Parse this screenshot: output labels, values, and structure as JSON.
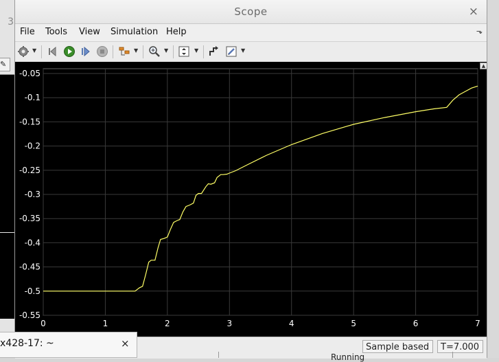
{
  "window": {
    "title": "Scope",
    "close_glyph": "×"
  },
  "menu": [
    "File",
    "Tools",
    "View",
    "Simulation",
    "Help"
  ],
  "menu_overflow_glyph": "⬎",
  "toolbar": {
    "icons": [
      "settings-icon",
      "step-back-icon",
      "run-icon",
      "step-forward-icon",
      "stop-icon",
      "highlight-icon",
      "zoom-icon",
      "autoscale-icon",
      "triggers-icon",
      "style-icon"
    ]
  },
  "status": {
    "mode": "Sample based",
    "time": "T=7.000"
  },
  "background": {
    "left_fragment": "3",
    "terminal_title": "x428-17: ~",
    "terminal_close": "×",
    "running_text": "Running"
  },
  "chart_data": {
    "type": "line",
    "title": "",
    "xlabel": "",
    "ylabel": "",
    "xlim": [
      0,
      7
    ],
    "ylim": [
      -0.55,
      -0.04
    ],
    "x_ticks": [
      "0",
      "1",
      "2",
      "3",
      "4",
      "5",
      "6",
      "7"
    ],
    "y_ticks": [
      "-0.05",
      "-0.1",
      "-0.15",
      "-0.2",
      "-0.25",
      "-0.3",
      "-0.35",
      "-0.4",
      "-0.45",
      "-0.5",
      "-0.55"
    ],
    "grid": true,
    "colors": {
      "background": "#000000",
      "line": "#ffff66",
      "grid": "#3a3a3a",
      "axis_text": "#ffffff"
    },
    "series": [
      {
        "x": [
          0,
          1.48,
          1.55,
          1.6,
          1.65,
          1.7,
          1.74,
          1.8,
          1.85,
          1.89,
          1.95,
          2.0,
          2.05,
          2.1,
          2.16,
          2.2,
          2.25,
          2.3,
          2.36,
          2.42,
          2.46,
          2.5,
          2.55,
          2.62,
          2.66,
          2.7,
          2.76,
          2.8,
          2.86,
          2.9,
          2.96,
          3.0,
          3.1,
          3.3,
          3.6,
          4.0,
          4.5,
          5.0,
          5.5,
          6.0,
          6.3,
          6.5,
          6.6,
          6.7,
          6.8,
          6.9,
          7.0
        ],
        "y": [
          -0.5,
          -0.5,
          -0.493,
          -0.49,
          -0.466,
          -0.44,
          -0.436,
          -0.436,
          -0.41,
          -0.393,
          -0.391,
          -0.388,
          -0.372,
          -0.358,
          -0.354,
          -0.352,
          -0.336,
          -0.325,
          -0.322,
          -0.318,
          -0.302,
          -0.298,
          -0.298,
          -0.284,
          -0.278,
          -0.279,
          -0.276,
          -0.265,
          -0.259,
          -0.259,
          -0.258,
          -0.256,
          -0.251,
          -0.238,
          -0.219,
          -0.197,
          -0.174,
          -0.155,
          -0.141,
          -0.129,
          -0.123,
          -0.12,
          -0.105,
          -0.094,
          -0.087,
          -0.08,
          -0.076
        ]
      }
    ]
  }
}
